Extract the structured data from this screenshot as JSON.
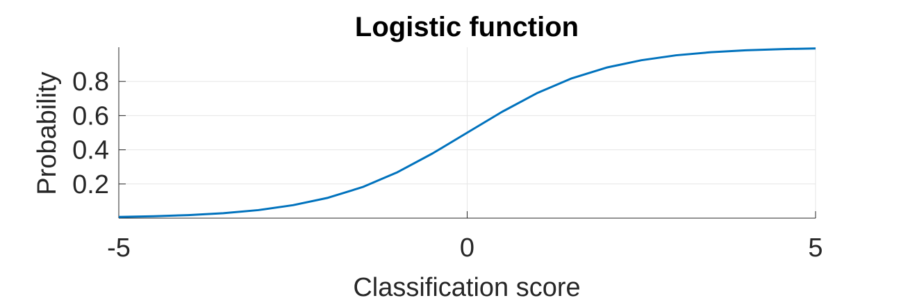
{
  "chart_data": {
    "type": "line",
    "title": "Logistic function",
    "xlabel": "Classification score",
    "ylabel": "Probability",
    "xlim": [
      -5,
      5
    ],
    "ylim": [
      0,
      1
    ],
    "xticks": [
      -5,
      0,
      5
    ],
    "xtick_labels": [
      "-5",
      "0",
      "5"
    ],
    "yticks": [
      0.2,
      0.4,
      0.6,
      0.8
    ],
    "ytick_labels": [
      "0.2",
      "0.4",
      "0.6",
      "0.8"
    ],
    "grid": true,
    "series": [
      {
        "color": "#0072bd",
        "x": [
          -5,
          -4.5,
          -4,
          -3.5,
          -3,
          -2.5,
          -2,
          -1.5,
          -1,
          -0.5,
          0,
          0.5,
          1,
          1.5,
          2,
          2.5,
          3,
          3.5,
          4,
          4.5,
          5
        ],
        "y": [
          0.007,
          0.011,
          0.018,
          0.029,
          0.047,
          0.076,
          0.119,
          0.182,
          0.269,
          0.378,
          0.5,
          0.622,
          0.731,
          0.818,
          0.881,
          0.924,
          0.953,
          0.971,
          0.982,
          0.989,
          0.993
        ]
      }
    ]
  }
}
